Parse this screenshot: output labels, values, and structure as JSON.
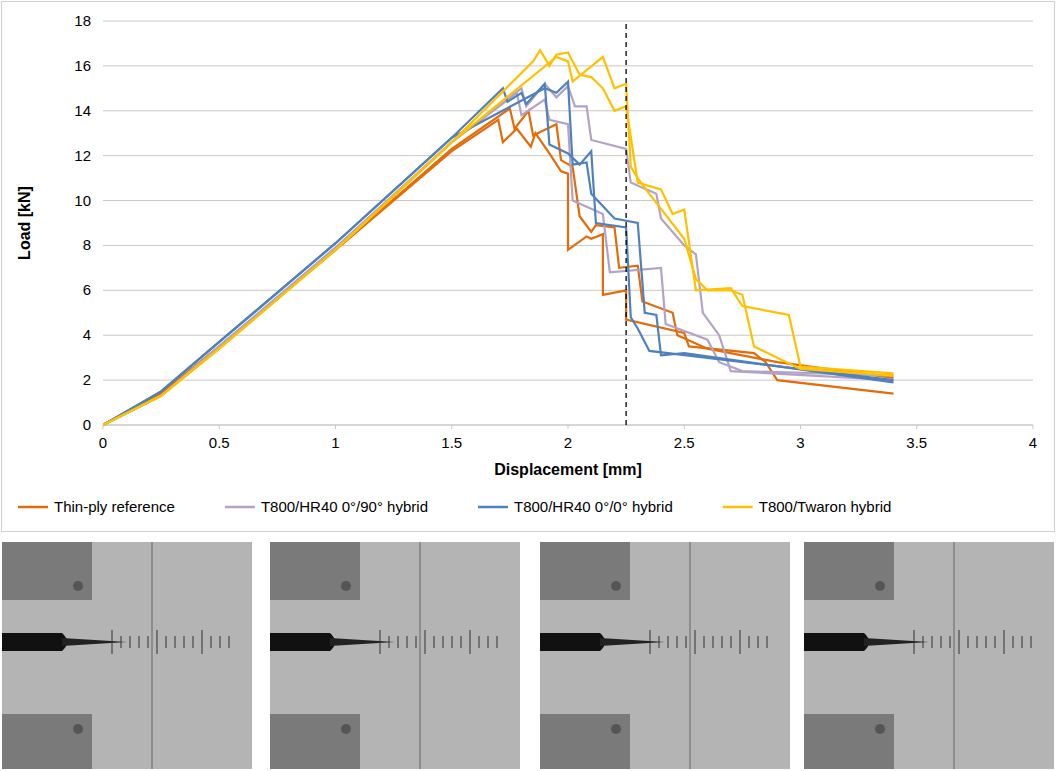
{
  "chart_data": {
    "type": "line",
    "x_label": "Displacement [mm]",
    "y_label": "Load [kN]",
    "xlim": [
      0,
      4
    ],
    "ylim": [
      0,
      18
    ],
    "xticks": [
      0,
      0.5,
      1,
      1.5,
      2,
      2.5,
      3,
      3.5,
      4
    ],
    "yticks": [
      0,
      2,
      4,
      6,
      8,
      10,
      12,
      14,
      16,
      18
    ],
    "grid": true,
    "legend": "bottom",
    "reference_line_x": 2.25,
    "series": [
      {
        "name": "Thin-ply reference",
        "color": "#E36C09",
        "curves": [
          {
            "x": [
              0,
              0.25,
              0.5,
              1,
              1.5,
              1.7,
              1.72,
              1.78,
              1.84,
              1.86,
              1.92,
              1.97,
              2.0,
              2.0,
              2.08,
              2.1,
              2.15,
              2.15,
              2.25,
              2.25,
              2.5,
              2.52,
              2.8,
              2.85,
              2.9,
              3.4
            ],
            "values": [
              0,
              1.4,
              3.5,
              7.8,
              12.2,
              13.6,
              12.6,
              13.2,
              12.4,
              13.0,
              12.1,
              11.3,
              11.2,
              7.8,
              8.4,
              8.3,
              8.5,
              5.8,
              6.0,
              4.7,
              4.1,
              3.5,
              3.2,
              2.8,
              2.0,
              1.4
            ]
          },
          {
            "x": [
              0,
              0.25,
              0.5,
              1,
              1.5,
              1.75,
              1.77,
              1.83,
              1.85,
              1.95,
              1.97,
              2.02,
              2.05,
              2.1,
              2.12,
              2.2,
              2.22,
              2.3,
              2.32,
              2.45,
              2.47,
              2.6,
              2.9,
              3.4
            ],
            "values": [
              0,
              1.4,
              3.5,
              7.8,
              12.3,
              14.1,
              13.2,
              14.0,
              12.9,
              13.4,
              11.8,
              11.5,
              9.3,
              8.6,
              8.9,
              8.8,
              7.0,
              7.1,
              5.5,
              5.0,
              4.0,
              3.4,
              2.8,
              2.1
            ]
          }
        ]
      },
      {
        "name": "T800/HR40 0°/90° hybrid",
        "color": "#B3A2C7",
        "curves": [
          {
            "x": [
              0,
              0.25,
              0.5,
              1,
              1.5,
              1.8,
              1.82,
              1.9,
              1.95,
              2.0,
              2.03,
              2.08,
              2.1,
              2.25,
              2.27,
              2.38,
              2.4,
              2.5,
              2.55,
              2.58,
              2.65,
              2.7,
              3.4
            ],
            "values": [
              0,
              1.3,
              3.5,
              7.9,
              12.6,
              15.0,
              14.2,
              15.2,
              14.6,
              15.1,
              14.2,
              14.2,
              12.7,
              12.3,
              10.8,
              10.3,
              9.2,
              8.0,
              7.6,
              5.0,
              4.0,
              2.4,
              2.0
            ]
          },
          {
            "x": [
              0,
              0.25,
              0.5,
              1,
              1.5,
              1.78,
              1.8,
              1.9,
              1.92,
              2.0,
              2.02,
              2.15,
              2.18,
              2.4,
              2.42,
              2.6,
              2.65,
              2.75,
              3.4
            ],
            "values": [
              0,
              1.3,
              3.5,
              7.9,
              12.6,
              14.8,
              13.8,
              14.5,
              13.6,
              13.4,
              10.0,
              9.4,
              6.8,
              7.0,
              4.5,
              3.8,
              2.8,
              2.4,
              2.2
            ]
          }
        ]
      },
      {
        "name": "T800/HR40 0°/0° hybrid",
        "color": "#4F81BD",
        "curves": [
          {
            "x": [
              0,
              0.25,
              0.5,
              1,
              1.5,
              1.72,
              1.74,
              1.8,
              1.82,
              1.9,
              1.92,
              2.0,
              2.05,
              2.1,
              2.12,
              2.25,
              2.27,
              2.3,
              2.35,
              3.4
            ],
            "values": [
              0,
              1.5,
              3.7,
              8.1,
              12.8,
              15.0,
              14.4,
              14.8,
              14.3,
              15.2,
              12.5,
              12.1,
              11.6,
              12.2,
              9.0,
              8.8,
              4.8,
              4.3,
              3.3,
              2.0
            ]
          },
          {
            "x": [
              0,
              0.25,
              0.5,
              1,
              1.5,
              1.9,
              1.95,
              2.0,
              2.02,
              2.08,
              2.1,
              2.2,
              2.3,
              2.33,
              2.38,
              2.4,
              2.5,
              3.4
            ],
            "values": [
              0,
              1.5,
              3.7,
              8.1,
              12.8,
              15.0,
              14.8,
              15.3,
              11.6,
              11.7,
              10.3,
              9.2,
              9.0,
              5.0,
              4.9,
              3.1,
              3.2,
              1.9
            ]
          }
        ]
      },
      {
        "name": "T800/Twaron hybrid",
        "color": "#FFC000",
        "curves": [
          {
            "x": [
              0,
              0.25,
              0.5,
              1,
              1.5,
              1.85,
              1.88,
              1.92,
              1.95,
              2.0,
              2.05,
              2.1,
              2.15,
              2.2,
              2.25,
              2.3,
              2.4,
              2.45,
              2.5,
              2.55,
              2.7,
              2.75,
              2.95,
              3.0,
              3.4
            ],
            "values": [
              0,
              1.3,
              3.4,
              7.8,
              12.6,
              16.2,
              16.7,
              16.0,
              16.5,
              16.6,
              15.6,
              15.5,
              15.0,
              14.0,
              14.2,
              10.8,
              10.5,
              9.4,
              9.6,
              6.0,
              6.1,
              5.3,
              4.9,
              2.6,
              2.3
            ]
          },
          {
            "x": [
              0,
              0.25,
              0.5,
              1,
              1.5,
              1.95,
              2.0,
              2.02,
              2.15,
              2.2,
              2.25,
              2.27,
              2.3,
              2.35,
              2.5,
              2.55,
              2.6,
              2.7,
              2.75,
              2.8,
              2.9,
              3.0,
              3.4
            ],
            "values": [
              0,
              1.3,
              3.4,
              7.8,
              12.6,
              16.4,
              16.2,
              15.3,
              16.4,
              15.0,
              15.2,
              11.5,
              11.0,
              10.3,
              8.3,
              6.5,
              6.0,
              6.0,
              5.8,
              3.5,
              3.0,
              2.5,
              2.2
            ]
          }
        ]
      }
    ]
  }
}
